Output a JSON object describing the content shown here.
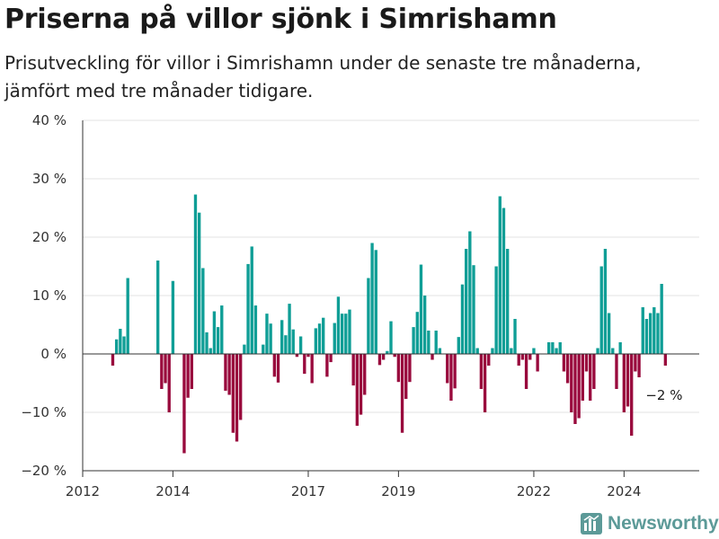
{
  "header": {
    "title": "Priserna på villor sjönk i Simrishamn",
    "subtitle": "Prisutveckling för villor i Simrishamn under de senaste tre månaderna, jämfört med tre månader tidigare."
  },
  "brand": {
    "name": "Newsworthy",
    "icon": "bar-chart-logo-icon"
  },
  "colors": {
    "positive": "#0f9e96",
    "negative": "#990a3d",
    "grid": "#e3e3e3",
    "axis": "#333333",
    "brand": "#5c9a98"
  },
  "chart_data": {
    "type": "bar",
    "y_unit": "%",
    "ylim": [
      -20,
      40
    ],
    "y_ticks": [
      {
        "value": 40,
        "label": "40 %"
      },
      {
        "value": 30,
        "label": "30 %"
      },
      {
        "value": 20,
        "label": "20 %"
      },
      {
        "value": 10,
        "label": "10 %"
      },
      {
        "value": 0,
        "label": "0 %"
      },
      {
        "value": -10,
        "label": "−10 %"
      },
      {
        "value": -20,
        "label": "−20 %"
      }
    ],
    "x_start": "2012-01",
    "x_end": "2025-09",
    "x_ticks": [
      {
        "date": "2012-01",
        "label": "2012"
      },
      {
        "date": "2014-01",
        "label": "2014"
      },
      {
        "date": "2017-01",
        "label": "2017"
      },
      {
        "date": "2019-01",
        "label": "2019"
      },
      {
        "date": "2022-01",
        "label": "2022"
      },
      {
        "date": "2024-01",
        "label": "2024"
      }
    ],
    "grid": true,
    "values": [
      {
        "date": "2012-09",
        "value": -2
      },
      {
        "date": "2012-10",
        "value": 2.5
      },
      {
        "date": "2012-11",
        "value": 4.3
      },
      {
        "date": "2012-12",
        "value": 3
      },
      {
        "date": "2013-01",
        "value": 13
      },
      {
        "date": "2013-09",
        "value": 16
      },
      {
        "date": "2013-10",
        "value": -6
      },
      {
        "date": "2013-11",
        "value": -5
      },
      {
        "date": "2013-12",
        "value": -10
      },
      {
        "date": "2014-01",
        "value": 12.5
      },
      {
        "date": "2014-04",
        "value": -17
      },
      {
        "date": "2014-05",
        "value": -7.5
      },
      {
        "date": "2014-06",
        "value": -6
      },
      {
        "date": "2014-07",
        "value": 27.3
      },
      {
        "date": "2014-08",
        "value": 24.2
      },
      {
        "date": "2014-09",
        "value": 14.7
      },
      {
        "date": "2014-10",
        "value": 3.7
      },
      {
        "date": "2014-11",
        "value": 1
      },
      {
        "date": "2014-12",
        "value": 7.3
      },
      {
        "date": "2015-01",
        "value": 4.6
      },
      {
        "date": "2015-02",
        "value": 8.3
      },
      {
        "date": "2015-03",
        "value": -6.3
      },
      {
        "date": "2015-04",
        "value": -7
      },
      {
        "date": "2015-05",
        "value": -13.5
      },
      {
        "date": "2015-06",
        "value": -15
      },
      {
        "date": "2015-07",
        "value": -11.3
      },
      {
        "date": "2015-08",
        "value": 1.6
      },
      {
        "date": "2015-09",
        "value": 15.4
      },
      {
        "date": "2015-10",
        "value": 18.4
      },
      {
        "date": "2015-11",
        "value": 8.3
      },
      {
        "date": "2016-01",
        "value": 1.6
      },
      {
        "date": "2016-02",
        "value": 6.9
      },
      {
        "date": "2016-03",
        "value": 5.2
      },
      {
        "date": "2016-04",
        "value": -3.9
      },
      {
        "date": "2016-05",
        "value": -4.9
      },
      {
        "date": "2016-06",
        "value": 5.8
      },
      {
        "date": "2016-07",
        "value": 3.2
      },
      {
        "date": "2016-08",
        "value": 8.6
      },
      {
        "date": "2016-09",
        "value": 4.2
      },
      {
        "date": "2016-10",
        "value": -0.5
      },
      {
        "date": "2016-11",
        "value": 3
      },
      {
        "date": "2016-12",
        "value": -3.4
      },
      {
        "date": "2017-01",
        "value": -0.5
      },
      {
        "date": "2017-02",
        "value": -5
      },
      {
        "date": "2017-03",
        "value": 4.4
      },
      {
        "date": "2017-04",
        "value": 5.2
      },
      {
        "date": "2017-05",
        "value": 6.2
      },
      {
        "date": "2017-06",
        "value": -3.9
      },
      {
        "date": "2017-07",
        "value": -1.4
      },
      {
        "date": "2017-08",
        "value": 5.3
      },
      {
        "date": "2017-09",
        "value": 9.8
      },
      {
        "date": "2017-10",
        "value": 6.9
      },
      {
        "date": "2017-11",
        "value": 6.9
      },
      {
        "date": "2017-12",
        "value": 7.6
      },
      {
        "date": "2018-01",
        "value": -5.4
      },
      {
        "date": "2018-02",
        "value": -12.3
      },
      {
        "date": "2018-03",
        "value": -10.4
      },
      {
        "date": "2018-04",
        "value": -7
      },
      {
        "date": "2018-05",
        "value": 13
      },
      {
        "date": "2018-06",
        "value": 19
      },
      {
        "date": "2018-07",
        "value": 17.8
      },
      {
        "date": "2018-08",
        "value": -1.9
      },
      {
        "date": "2018-09",
        "value": -1
      },
      {
        "date": "2018-10",
        "value": 0.5
      },
      {
        "date": "2018-11",
        "value": 5.6
      },
      {
        "date": "2018-12",
        "value": -0.5
      },
      {
        "date": "2019-01",
        "value": -4.8
      },
      {
        "date": "2019-02",
        "value": -13.5
      },
      {
        "date": "2019-03",
        "value": -7.7
      },
      {
        "date": "2019-04",
        "value": -4.8
      },
      {
        "date": "2019-05",
        "value": 4.6
      },
      {
        "date": "2019-06",
        "value": 7.2
      },
      {
        "date": "2019-07",
        "value": 15.3
      },
      {
        "date": "2019-08",
        "value": 10
      },
      {
        "date": "2019-09",
        "value": 4
      },
      {
        "date": "2019-10",
        "value": -1
      },
      {
        "date": "2019-11",
        "value": 4
      },
      {
        "date": "2019-12",
        "value": 1
      },
      {
        "date": "2020-02",
        "value": -5
      },
      {
        "date": "2020-03",
        "value": -8
      },
      {
        "date": "2020-04",
        "value": -5.9
      },
      {
        "date": "2020-05",
        "value": 2.9
      },
      {
        "date": "2020-06",
        "value": 11.9
      },
      {
        "date": "2020-07",
        "value": 18
      },
      {
        "date": "2020-08",
        "value": 21
      },
      {
        "date": "2020-09",
        "value": 15.2
      },
      {
        "date": "2020-10",
        "value": 1
      },
      {
        "date": "2020-11",
        "value": -6
      },
      {
        "date": "2020-12",
        "value": -10
      },
      {
        "date": "2021-01",
        "value": -2
      },
      {
        "date": "2021-02",
        "value": 1
      },
      {
        "date": "2021-03",
        "value": 15
      },
      {
        "date": "2021-04",
        "value": 27
      },
      {
        "date": "2021-05",
        "value": 25
      },
      {
        "date": "2021-06",
        "value": 18
      },
      {
        "date": "2021-07",
        "value": 1
      },
      {
        "date": "2021-08",
        "value": 6
      },
      {
        "date": "2021-09",
        "value": -2
      },
      {
        "date": "2021-10",
        "value": -1
      },
      {
        "date": "2021-11",
        "value": -6
      },
      {
        "date": "2021-12",
        "value": -1
      },
      {
        "date": "2022-01",
        "value": 1
      },
      {
        "date": "2022-02",
        "value": -3
      },
      {
        "date": "2022-05",
        "value": 2
      },
      {
        "date": "2022-06",
        "value": 2
      },
      {
        "date": "2022-07",
        "value": 1
      },
      {
        "date": "2022-08",
        "value": 2
      },
      {
        "date": "2022-09",
        "value": -3
      },
      {
        "date": "2022-10",
        "value": -5
      },
      {
        "date": "2022-11",
        "value": -10
      },
      {
        "date": "2022-12",
        "value": -12
      },
      {
        "date": "2023-01",
        "value": -11
      },
      {
        "date": "2023-02",
        "value": -8
      },
      {
        "date": "2023-03",
        "value": -3
      },
      {
        "date": "2023-04",
        "value": -8
      },
      {
        "date": "2023-05",
        "value": -6
      },
      {
        "date": "2023-06",
        "value": 1
      },
      {
        "date": "2023-07",
        "value": 15
      },
      {
        "date": "2023-08",
        "value": 18
      },
      {
        "date": "2023-09",
        "value": 7
      },
      {
        "date": "2023-10",
        "value": 1
      },
      {
        "date": "2023-11",
        "value": -6
      },
      {
        "date": "2023-12",
        "value": 2
      },
      {
        "date": "2024-01",
        "value": -10
      },
      {
        "date": "2024-02",
        "value": -9
      },
      {
        "date": "2024-03",
        "value": -14
      },
      {
        "date": "2024-04",
        "value": -3
      },
      {
        "date": "2024-05",
        "value": -4
      },
      {
        "date": "2024-06",
        "value": 8
      },
      {
        "date": "2024-07",
        "value": 6
      },
      {
        "date": "2024-08",
        "value": 7
      },
      {
        "date": "2024-09",
        "value": 8
      },
      {
        "date": "2024-10",
        "value": 7
      },
      {
        "date": "2024-11",
        "value": 12
      },
      {
        "date": "2024-12",
        "value": -2
      }
    ],
    "annotation": {
      "text": "−2 %",
      "date": "2024-12",
      "value": -2
    }
  }
}
